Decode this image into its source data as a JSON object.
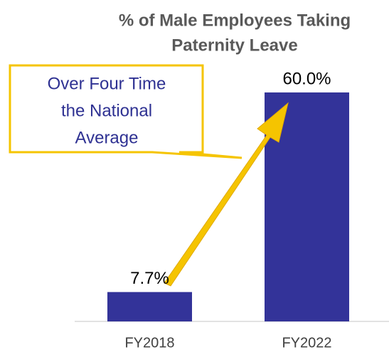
{
  "chart_data": {
    "type": "bar",
    "title": [
      "% of Male Employees Taking",
      "Paternity Leave"
    ],
    "categories": [
      "FY2018",
      "FY2022"
    ],
    "values": [
      7.7,
      60.0
    ],
    "value_labels": [
      "7.7%",
      "60.0%"
    ],
    "color": "#333399",
    "annotation": [
      "Over Four Time",
      "the National",
      "Average"
    ]
  }
}
